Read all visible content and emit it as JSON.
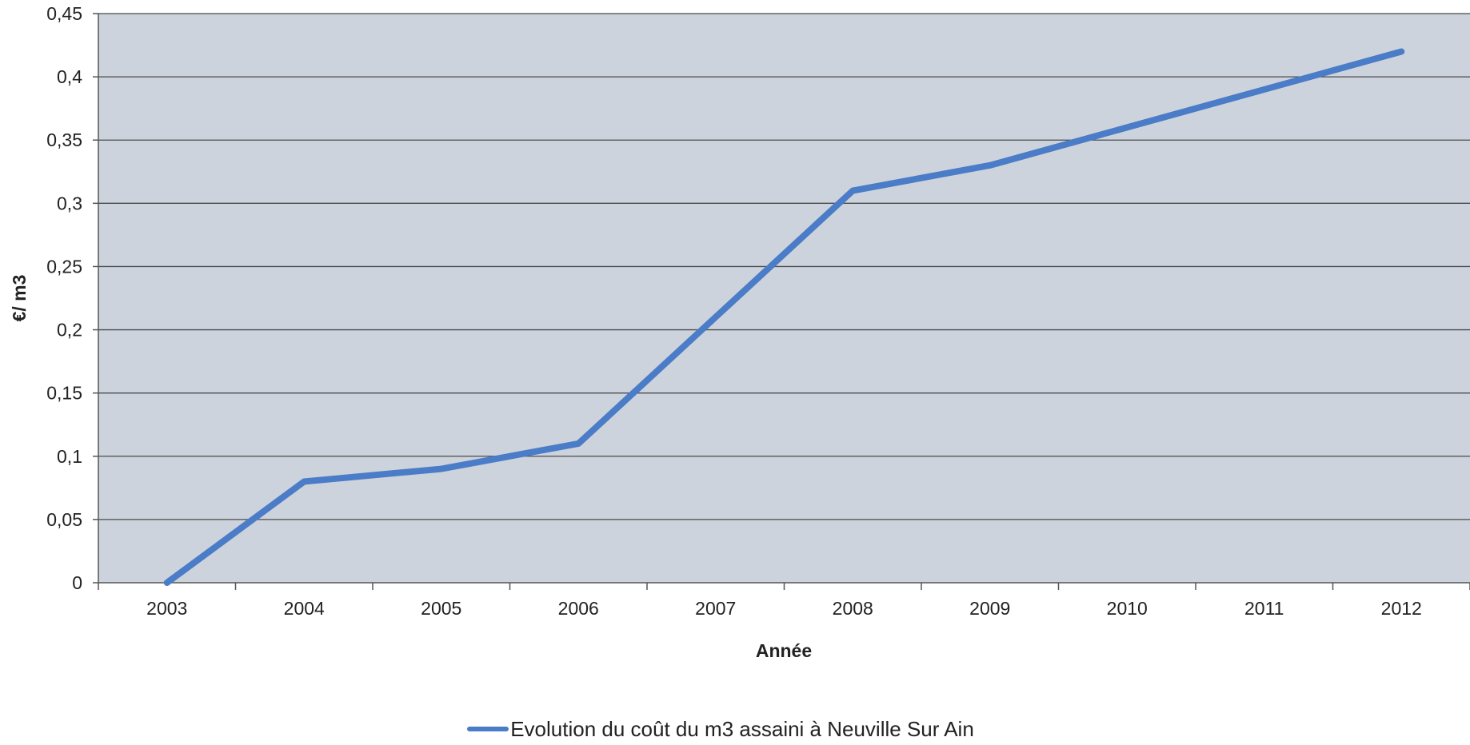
{
  "chart_data": {
    "type": "line",
    "title": "",
    "xlabel": "Année",
    "ylabel": "€/ m3",
    "categories": [
      "2003",
      "2004",
      "2005",
      "2006",
      "2007",
      "2008",
      "2009",
      "2010",
      "2011",
      "2012"
    ],
    "series": [
      {
        "name": "Evolution du coût du m3 assaini à Neuville Sur Ain",
        "values": [
          0,
          0.08,
          0.09,
          0.11,
          0.21,
          0.31,
          0.33,
          0.36,
          0.39,
          0.42
        ],
        "color": "#4A7CC7"
      }
    ],
    "y_ticks": [
      "0",
      "0,05",
      "0,1",
      "0,15",
      "0,2",
      "0,25",
      "0,3",
      "0,35",
      "0,4",
      "0,45"
    ],
    "ylim": [
      0,
      0.45
    ],
    "grid": true,
    "legend_position": "bottom",
    "plot_background": "#CDD3DC",
    "gridline_color": "#4A4A4A"
  }
}
